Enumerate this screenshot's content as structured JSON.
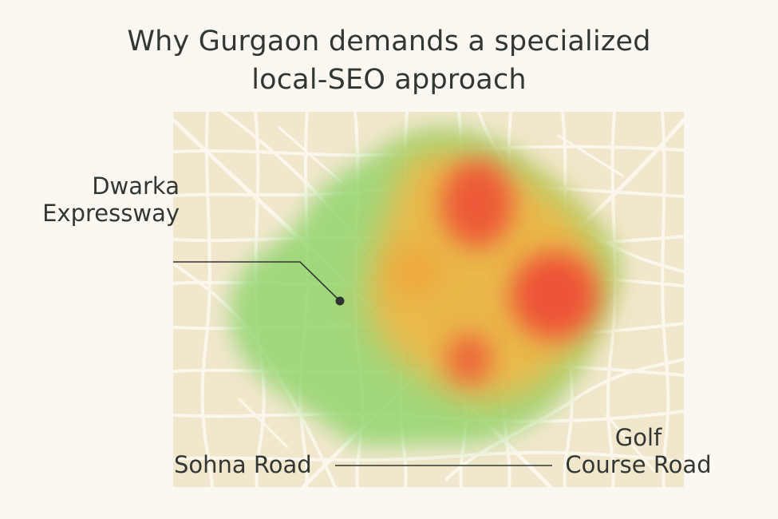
{
  "title": {
    "line1": "Why Gurgaon demands a specialized",
    "line2": "local-SEO approach"
  },
  "map": {
    "background_color": "#f1e7cd",
    "road_color": "#fbf7ec",
    "heat_colors": {
      "low": "#8fd46a",
      "mid": "#f3b544",
      "high": "#ee4a35"
    }
  },
  "labels": {
    "dwarka_line1": "Dwarka",
    "dwarka_line2": "Expressway",
    "sohna": "Sohna Road",
    "golf_line1": "Golf",
    "golf_line2": "Course Road"
  }
}
